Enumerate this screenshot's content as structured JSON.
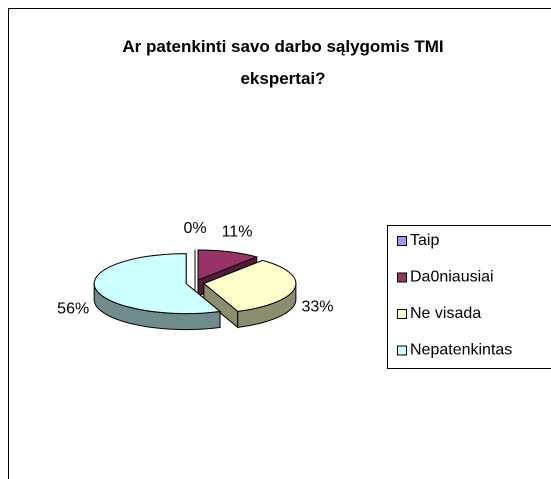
{
  "chart_data": {
    "type": "pie",
    "title": "Ar patenkinti savo darbo sąlygomis TMI ekspertai?",
    "categories": [
      "Taip",
      "Da0niausiai",
      "Ne visada",
      "Nepatenkintas"
    ],
    "values": [
      0,
      11,
      33,
      56
    ],
    "value_labels": [
      "0%",
      "11%",
      "33%",
      "56%"
    ],
    "colors": [
      "#9999ff",
      "#993366",
      "#ffffcc",
      "#ccffff"
    ],
    "legend": "right"
  }
}
